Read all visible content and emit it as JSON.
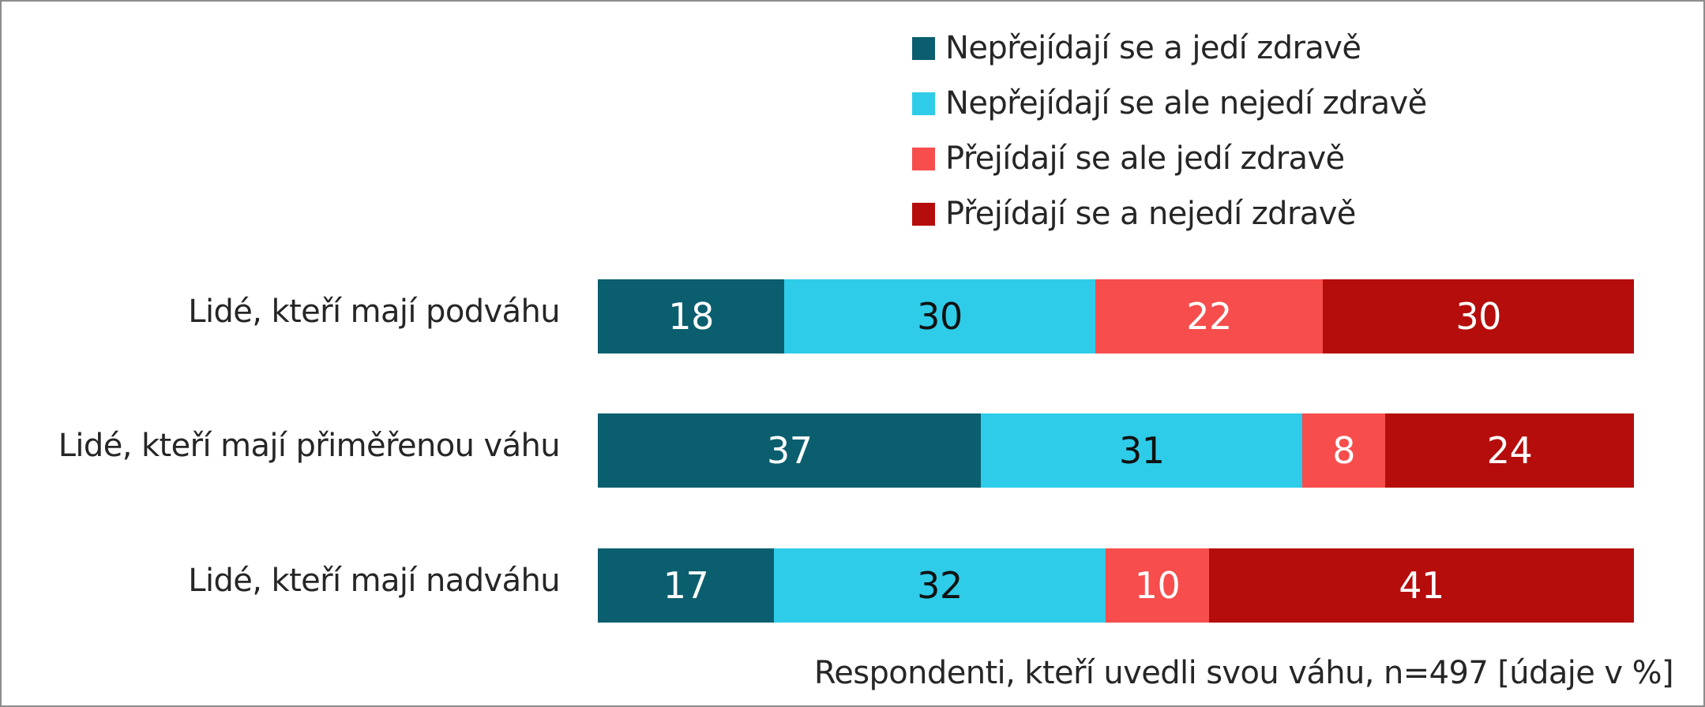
{
  "chart_data": {
    "type": "bar",
    "orientation": "horizontal",
    "stacked": true,
    "title": "",
    "xlabel": "",
    "ylabel": "",
    "xlim": [
      0,
      100
    ],
    "grid": false,
    "legend_position": "top-right",
    "categories": [
      "Lidé, kteří mají podváhu",
      "Lidé, kteří mají přiměřenou váhu",
      "Lidé, kteří mají nadváhu"
    ],
    "series": [
      {
        "name": "Nepřejídají se a jedí zdravě",
        "color": "#0b5e6e",
        "label_color": "#ffffff",
        "values": [
          18,
          37,
          17
        ]
      },
      {
        "name": "Nepřejídají se ale nejedí zdravě",
        "color": "#2ecce8",
        "label_color": "#111111",
        "values": [
          30,
          31,
          32
        ]
      },
      {
        "name": "Přejídají se ale jedí zdravě",
        "color": "#f74d4d",
        "label_color": "#ffffff",
        "values": [
          22,
          8,
          10
        ]
      },
      {
        "name": "Přejídají se a nejedí zdravě",
        "color": "#b50d0b",
        "label_color": "#ffffff",
        "values": [
          30,
          24,
          41
        ]
      }
    ],
    "annotations": [
      "Respondenti, kteří uvedli svou váhu, n=497 [údaje v %]"
    ]
  },
  "footnote": "Respondenti, kteří uvedli svou váhu, n=497 [údaje v %]"
}
